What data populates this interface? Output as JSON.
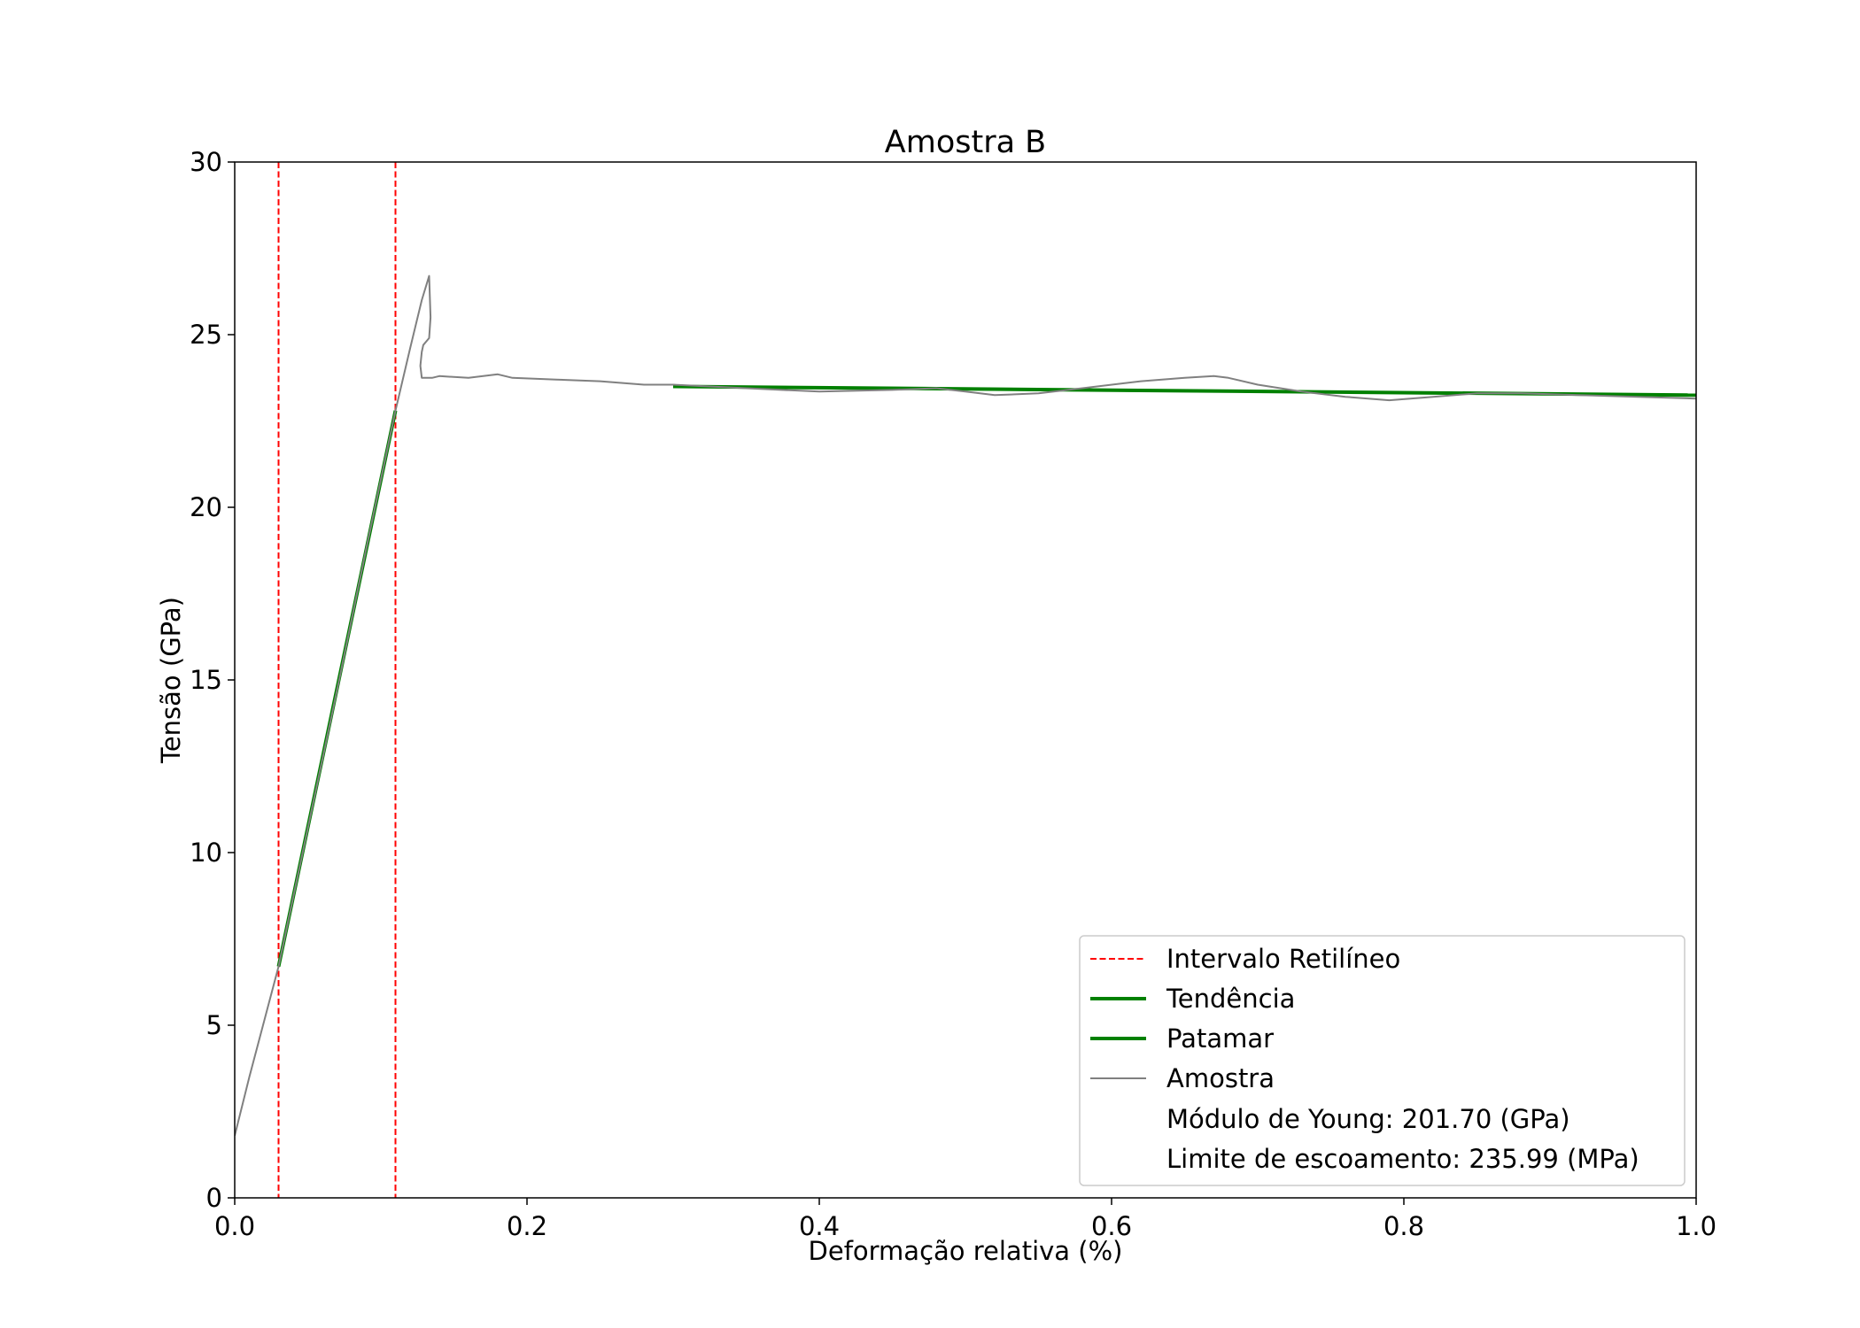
{
  "chart_data": {
    "type": "line",
    "title": "Amostra B",
    "xlabel": "Deformação relativa (%)",
    "ylabel": "Tensão (GPa)",
    "xlim": [
      0.0,
      1.0
    ],
    "ylim": [
      0,
      30
    ],
    "xticks": [
      0.0,
      0.2,
      0.4,
      0.6,
      0.8,
      1.0
    ],
    "xtick_labels": [
      "0.0",
      "0.2",
      "0.4",
      "0.6",
      "0.8",
      "1.0"
    ],
    "yticks": [
      0,
      5,
      10,
      15,
      20,
      25,
      30
    ],
    "ytick_labels": [
      "0",
      "5",
      "10",
      "15",
      "20",
      "25",
      "30"
    ],
    "grid": false,
    "legend_position": "lower-right",
    "series": [
      {
        "name": "Intervalo Retilíneo",
        "kind": "vline",
        "style": "dashed",
        "color": "#ff0000",
        "x": [
          0.03,
          0.11
        ]
      },
      {
        "name": "Tendência",
        "kind": "line",
        "style": "solid",
        "color": "#008000",
        "points": [
          [
            0.03,
            6.7
          ],
          [
            0.11,
            22.8
          ]
        ]
      },
      {
        "name": "Patamar",
        "kind": "line",
        "style": "solid",
        "color": "#008000",
        "points": [
          [
            0.3,
            23.5
          ],
          [
            1.0,
            23.25
          ]
        ]
      },
      {
        "name": "Amostra",
        "kind": "line",
        "style": "solid",
        "color": "#808080",
        "points": [
          [
            0.0,
            1.8
          ],
          [
            0.01,
            3.5
          ],
          [
            0.02,
            5.1
          ],
          [
            0.03,
            6.7
          ],
          [
            0.05,
            10.7
          ],
          [
            0.07,
            14.7
          ],
          [
            0.09,
            18.8
          ],
          [
            0.11,
            22.8
          ],
          [
            0.12,
            24.6
          ],
          [
            0.128,
            26.0
          ],
          [
            0.133,
            26.7
          ],
          [
            0.134,
            25.5
          ],
          [
            0.133,
            24.9
          ],
          [
            0.129,
            24.7
          ],
          [
            0.128,
            24.5
          ],
          [
            0.127,
            24.1
          ],
          [
            0.128,
            23.75
          ],
          [
            0.135,
            23.75
          ],
          [
            0.14,
            23.8
          ],
          [
            0.16,
            23.75
          ],
          [
            0.18,
            23.85
          ],
          [
            0.19,
            23.75
          ],
          [
            0.22,
            23.7
          ],
          [
            0.25,
            23.65
          ],
          [
            0.28,
            23.55
          ],
          [
            0.3,
            23.55
          ],
          [
            0.35,
            23.45
          ],
          [
            0.4,
            23.35
          ],
          [
            0.45,
            23.4
          ],
          [
            0.48,
            23.45
          ],
          [
            0.5,
            23.35
          ],
          [
            0.52,
            23.25
          ],
          [
            0.55,
            23.3
          ],
          [
            0.58,
            23.45
          ],
          [
            0.62,
            23.65
          ],
          [
            0.65,
            23.75
          ],
          [
            0.67,
            23.8
          ],
          [
            0.68,
            23.75
          ],
          [
            0.7,
            23.55
          ],
          [
            0.73,
            23.35
          ],
          [
            0.76,
            23.2
          ],
          [
            0.79,
            23.1
          ],
          [
            0.82,
            23.2
          ],
          [
            0.85,
            23.3
          ],
          [
            0.88,
            23.3
          ],
          [
            0.92,
            23.25
          ],
          [
            0.96,
            23.2
          ],
          [
            1.0,
            23.15
          ]
        ]
      }
    ],
    "annotations": [
      "Módulo de Young: 201.70 (GPa)",
      "Limite de escoamento: 235.99 (MPa)"
    ]
  }
}
